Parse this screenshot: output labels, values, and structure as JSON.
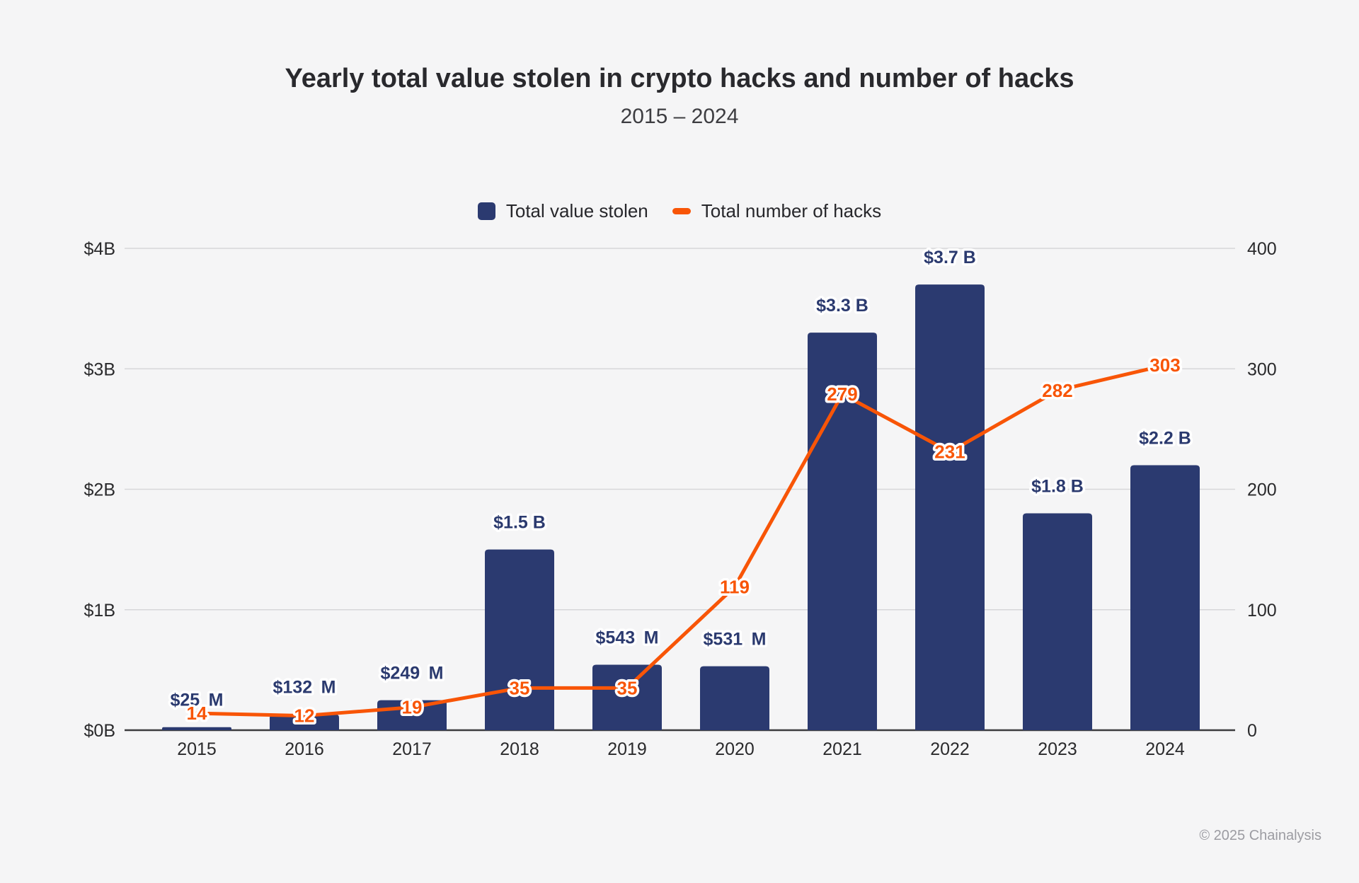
{
  "header": {
    "title": "Yearly total value stolen in crypto hacks and number of hacks",
    "subtitle": "2015 – 2024"
  },
  "legend": {
    "items": [
      {
        "label": "Total value stolen",
        "marker": "bar-swatch"
      },
      {
        "label": "Total number of hacks",
        "marker": "line-swatch"
      }
    ]
  },
  "footer": {
    "copyright": "© 2025 Chainalysis"
  },
  "colors": {
    "background": "#f5f5f6",
    "bar": "#2b3a70",
    "bar_label": "#2b3a6f",
    "line": "#f85507",
    "line_label": "#f85507",
    "label_halo": "#ffffff",
    "gridline": "#d7d7d9",
    "axis_line": "#3c3c3e",
    "tick_text": "#2a2a2c",
    "title_text": "#29292d"
  },
  "chart_data": {
    "type": "bar+line",
    "title": "Yearly total value stolen in crypto hacks and number of hacks",
    "subtitle": "2015 – 2024",
    "categories": [
      "2015",
      "2016",
      "2017",
      "2018",
      "2019",
      "2020",
      "2021",
      "2022",
      "2023",
      "2024"
    ],
    "series": [
      {
        "name": "Total value stolen",
        "type": "bar",
        "axis": "left",
        "unit": "USD millions",
        "values": [
          25,
          132,
          249,
          1500,
          543,
          531,
          3300,
          3700,
          1800,
          2200
        ],
        "labels": [
          "$25 M",
          "$132 M",
          "$249 M",
          "$1.5 B",
          "$543 M",
          "$531 M",
          "$3.3 B",
          "$3.7 B",
          "$1.8 B",
          "$2.2 B"
        ]
      },
      {
        "name": "Total number of hacks",
        "type": "line",
        "axis": "right",
        "unit": "hacks",
        "values": [
          14,
          12,
          19,
          35,
          35,
          119,
          279,
          231,
          282,
          303
        ],
        "labels": [
          "14",
          "12",
          "19",
          "35",
          "35",
          "119",
          "279",
          "231",
          "282",
          "303"
        ]
      }
    ],
    "left_axis": {
      "min": 0,
      "max": 4000,
      "unit": "USD millions",
      "ticks": [
        "$0B",
        "$1B",
        "$2B",
        "$3B",
        "$4B"
      ]
    },
    "right_axis": {
      "min": 0,
      "max": 400,
      "unit": "hacks",
      "ticks": [
        "0",
        "100",
        "200",
        "300",
        "400"
      ]
    },
    "grid": true,
    "legend_position": "top"
  }
}
